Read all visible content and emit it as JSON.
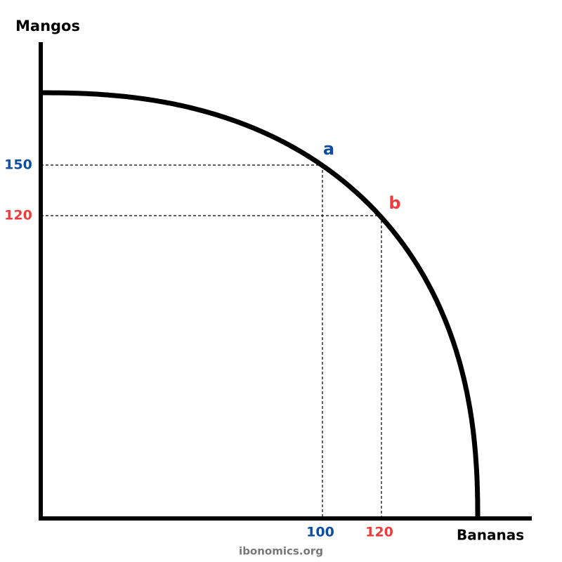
{
  "title_y": "Mangos",
  "title_x": "Bananas",
  "points": [
    {
      "label": "a",
      "x_label": "100",
      "y_label": "150",
      "color": "#0b4da2"
    },
    {
      "label": "b",
      "x_label": "120",
      "y_label": "120",
      "color": "#ef3b3b"
    }
  ],
  "footer": "ibonomics.org"
}
